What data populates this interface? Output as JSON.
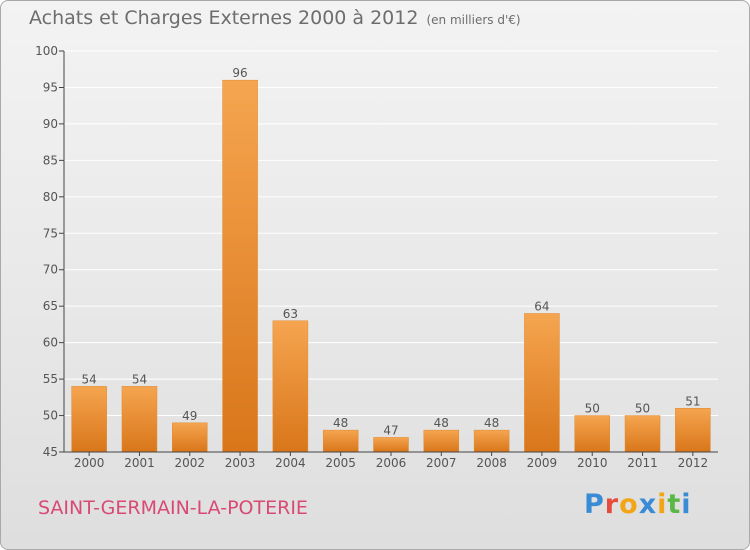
{
  "header": {
    "title": "Achats et Charges Externes 2000 à 2012",
    "unit": "(en milliers d'€)"
  },
  "footer": {
    "commune": "SAINT-GERMAIN-LA-POTERIE",
    "logo_letters": [
      "P",
      "r",
      "o",
      "x",
      "i",
      "t",
      "i"
    ],
    "logo_colors": [
      "#3a8bd6",
      "#e64b3c",
      "#f2a516",
      "#3a8bd6",
      "#f2a516",
      "#5bb845",
      "#3a8bd6"
    ]
  },
  "colors": {
    "bar_top": "#f5a550",
    "bar_bottom": "#d9761a",
    "axis": "#444444",
    "grid": "#ffffff",
    "commune_text": "#d84a74"
  },
  "chart_data": {
    "type": "bar",
    "categories": [
      "2000",
      "2001",
      "2002",
      "2003",
      "2004",
      "2005",
      "2006",
      "2007",
      "2008",
      "2009",
      "2010",
      "2011",
      "2012"
    ],
    "values": [
      54,
      54,
      49,
      96,
      63,
      48,
      47,
      48,
      48,
      64,
      50,
      50,
      51
    ],
    "title": "Achats et Charges Externes 2000 à 2012",
    "subtitle": "(en milliers d'€)",
    "xlabel": "",
    "ylabel": "",
    "ylim": [
      45,
      100
    ],
    "yticks": [
      45,
      50,
      55,
      60,
      65,
      70,
      75,
      80,
      85,
      90,
      95,
      100
    ],
    "grid": true,
    "data_labels": true
  }
}
